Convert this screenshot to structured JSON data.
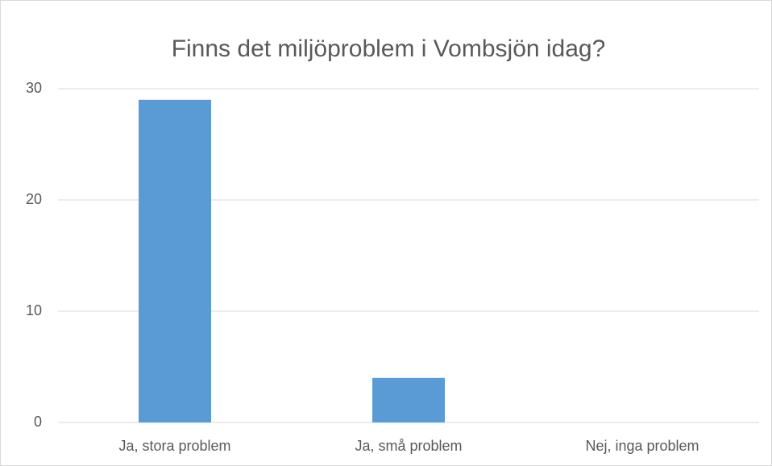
{
  "chart_data": {
    "type": "bar",
    "title": "Finns det miljöproblem i Vombsjön idag?",
    "categories": [
      "Ja, stora problem",
      "Ja, små problem",
      "Nej, inga problem"
    ],
    "values": [
      29,
      4,
      0
    ],
    "color": "#5b9bd5",
    "ylim": [
      0,
      30
    ],
    "yticks": [
      0,
      10,
      20,
      30
    ],
    "grid": true
  }
}
